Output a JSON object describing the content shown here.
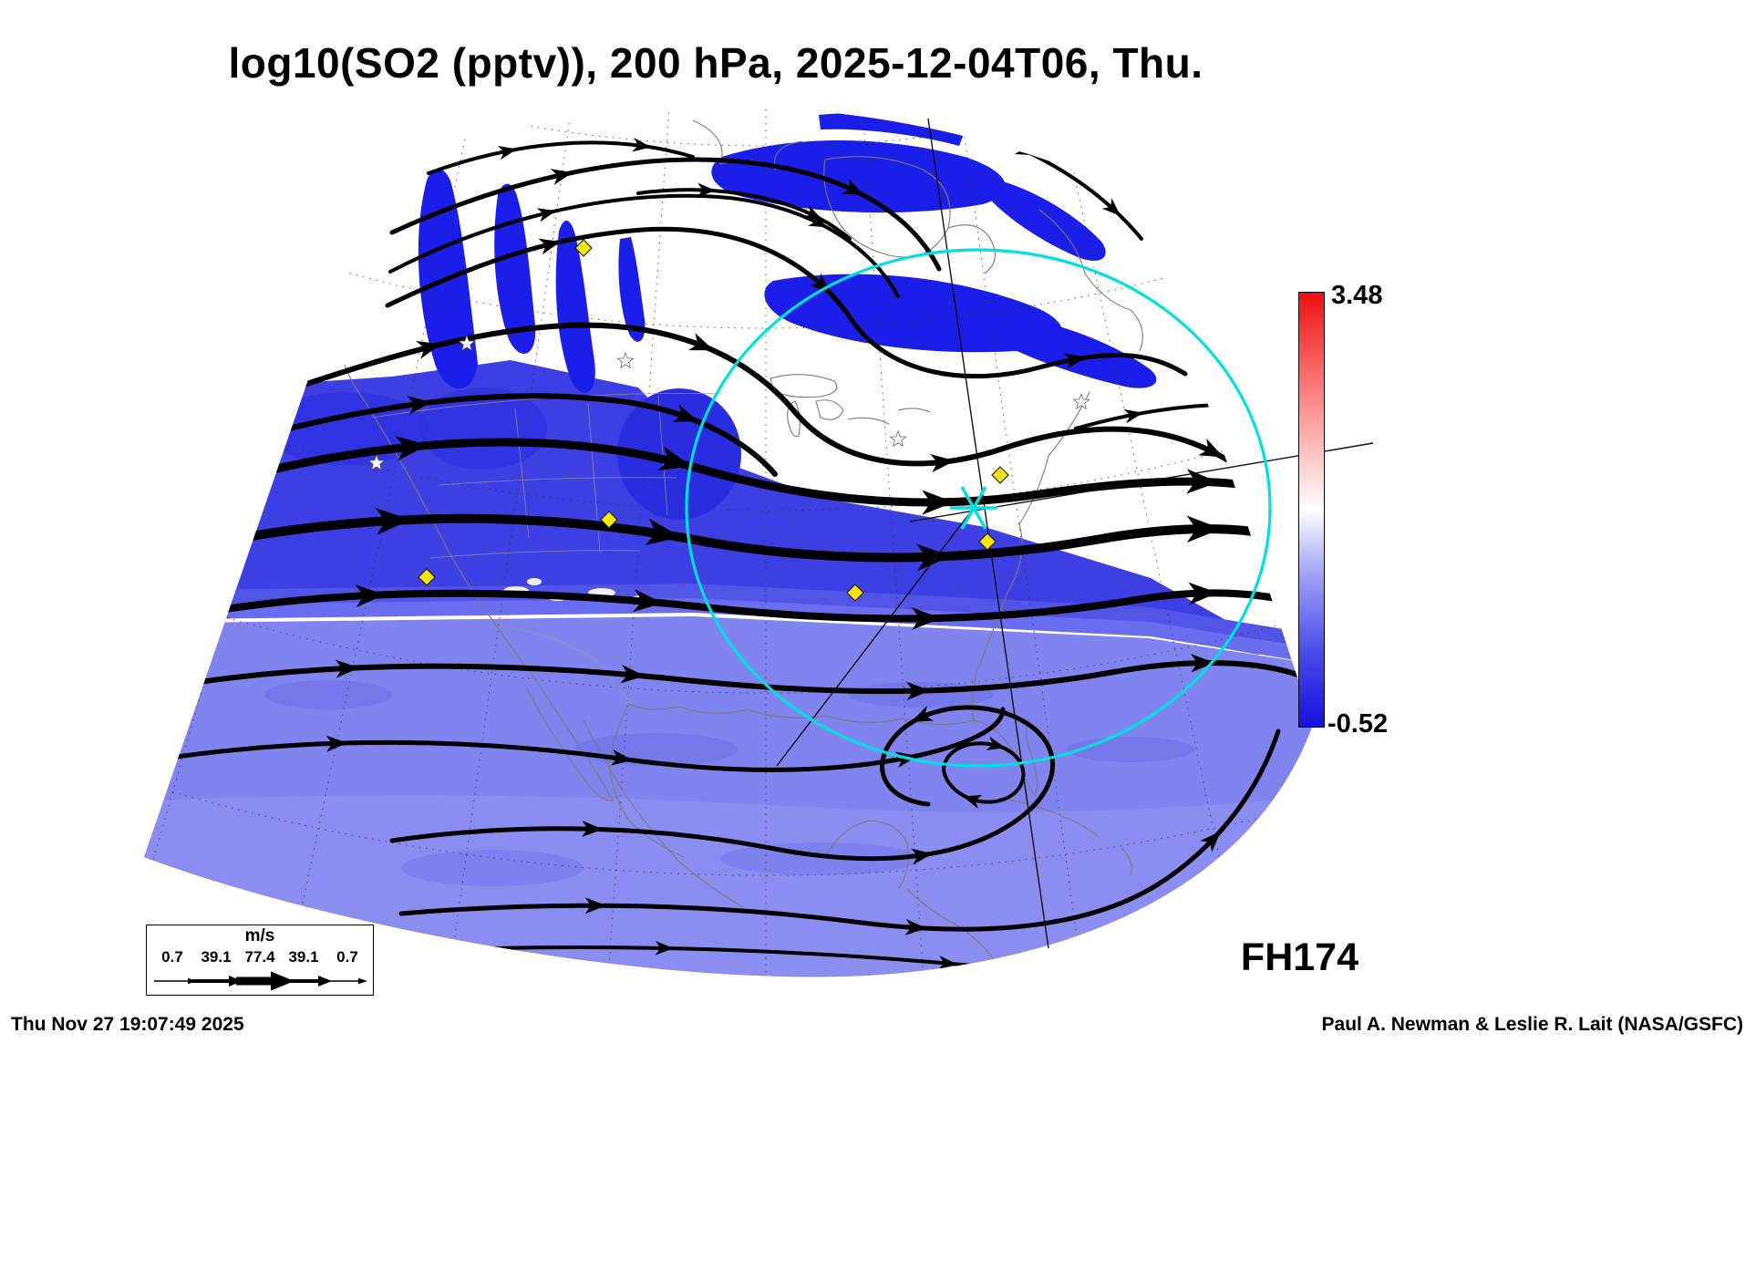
{
  "title": "log10(SO2 (pptv)), 200 hPa, 2025-12-04T06, Thu.",
  "forecast_hour_label": "FH174",
  "colorbar": {
    "max_label": "3.48",
    "min_label": "-0.52",
    "top_color": "#ee1010",
    "mid_color": "#ffffff",
    "bottom_color": "#1412dd"
  },
  "wind_legend": {
    "unit": "m/s",
    "values": [
      "0.7",
      "39.1",
      "77.4",
      "39.1",
      "0.7"
    ]
  },
  "footer": {
    "generated_at": "Thu Nov 27 19:07:49 2025",
    "credit": "Paul A. Newman & Leslie R. Lait (NASA/GSFC)"
  },
  "map": {
    "range_ring_color": "#00e0e0",
    "site_marker_color": "#ffe800",
    "so2_shade_low": "#8184ee",
    "so2_shade_mid": "#3d3fe3",
    "so2_shade_high": "#1b1de8"
  }
}
